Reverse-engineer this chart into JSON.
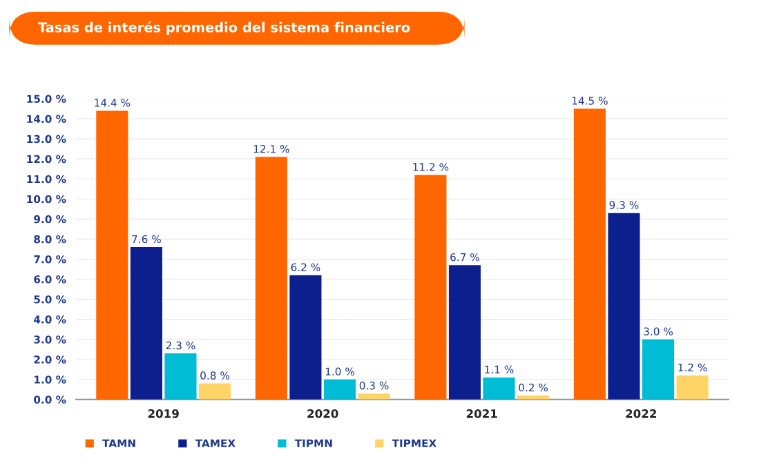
{
  "chart_data": {
    "type": "bar",
    "title": "Tasas de interés promedio del sistema financiero",
    "categories": [
      "2019",
      "2020",
      "2021",
      "2022"
    ],
    "series": [
      {
        "name": "TAMN",
        "color": "#ff6600",
        "values": [
          14.4,
          12.1,
          11.2,
          14.5
        ],
        "value_labels": [
          "14.4 %",
          "12.1 %",
          "11.2 %",
          "14.5 %"
        ]
      },
      {
        "name": "TAMEX",
        "color": "#0d1f8c",
        "values": [
          7.6,
          6.2,
          6.7,
          9.3
        ],
        "value_labels": [
          "7.6 %",
          "6.2 %",
          "6.7 %",
          "9.3 %"
        ]
      },
      {
        "name": "TIPMN",
        "color": "#00bcd4",
        "values": [
          2.3,
          1.0,
          1.1,
          3.0
        ],
        "value_labels": [
          "2.3 %",
          "1.0 %",
          "1.1 %",
          "3.0 %"
        ]
      },
      {
        "name": "TIPMEX",
        "color": "#ffd466",
        "values": [
          0.8,
          0.3,
          0.2,
          1.2
        ],
        "value_labels": [
          "0.8 %",
          "0.3 %",
          "0.2 %",
          "1.2 %"
        ]
      }
    ],
    "ylim": [
      0,
      15
    ],
    "yticks": [
      {
        "value": 0,
        "label": "0.0 %"
      },
      {
        "value": 1,
        "label": "1.0 %"
      },
      {
        "value": 2,
        "label": "2.0 %"
      },
      {
        "value": 3,
        "label": "3.0 %"
      },
      {
        "value": 4,
        "label": "4.0 %"
      },
      {
        "value": 5,
        "label": "5.0 %"
      },
      {
        "value": 6,
        "label": "6.0 %"
      },
      {
        "value": 7,
        "label": "7.0 %"
      },
      {
        "value": 8,
        "label": "8.0 %"
      },
      {
        "value": 9,
        "label": "9.0 %"
      },
      {
        "value": 10,
        "label": "10.0 %"
      },
      {
        "value": 11,
        "label": "11.0 %"
      },
      {
        "value": 12,
        "label": "12.0 %"
      },
      {
        "value": 13,
        "label": "13.0 %"
      },
      {
        "value": 14,
        "label": "14.0 %"
      },
      {
        "value": 15,
        "label": "15.0 %"
      }
    ],
    "grid": "y",
    "legend": "bottom left"
  }
}
